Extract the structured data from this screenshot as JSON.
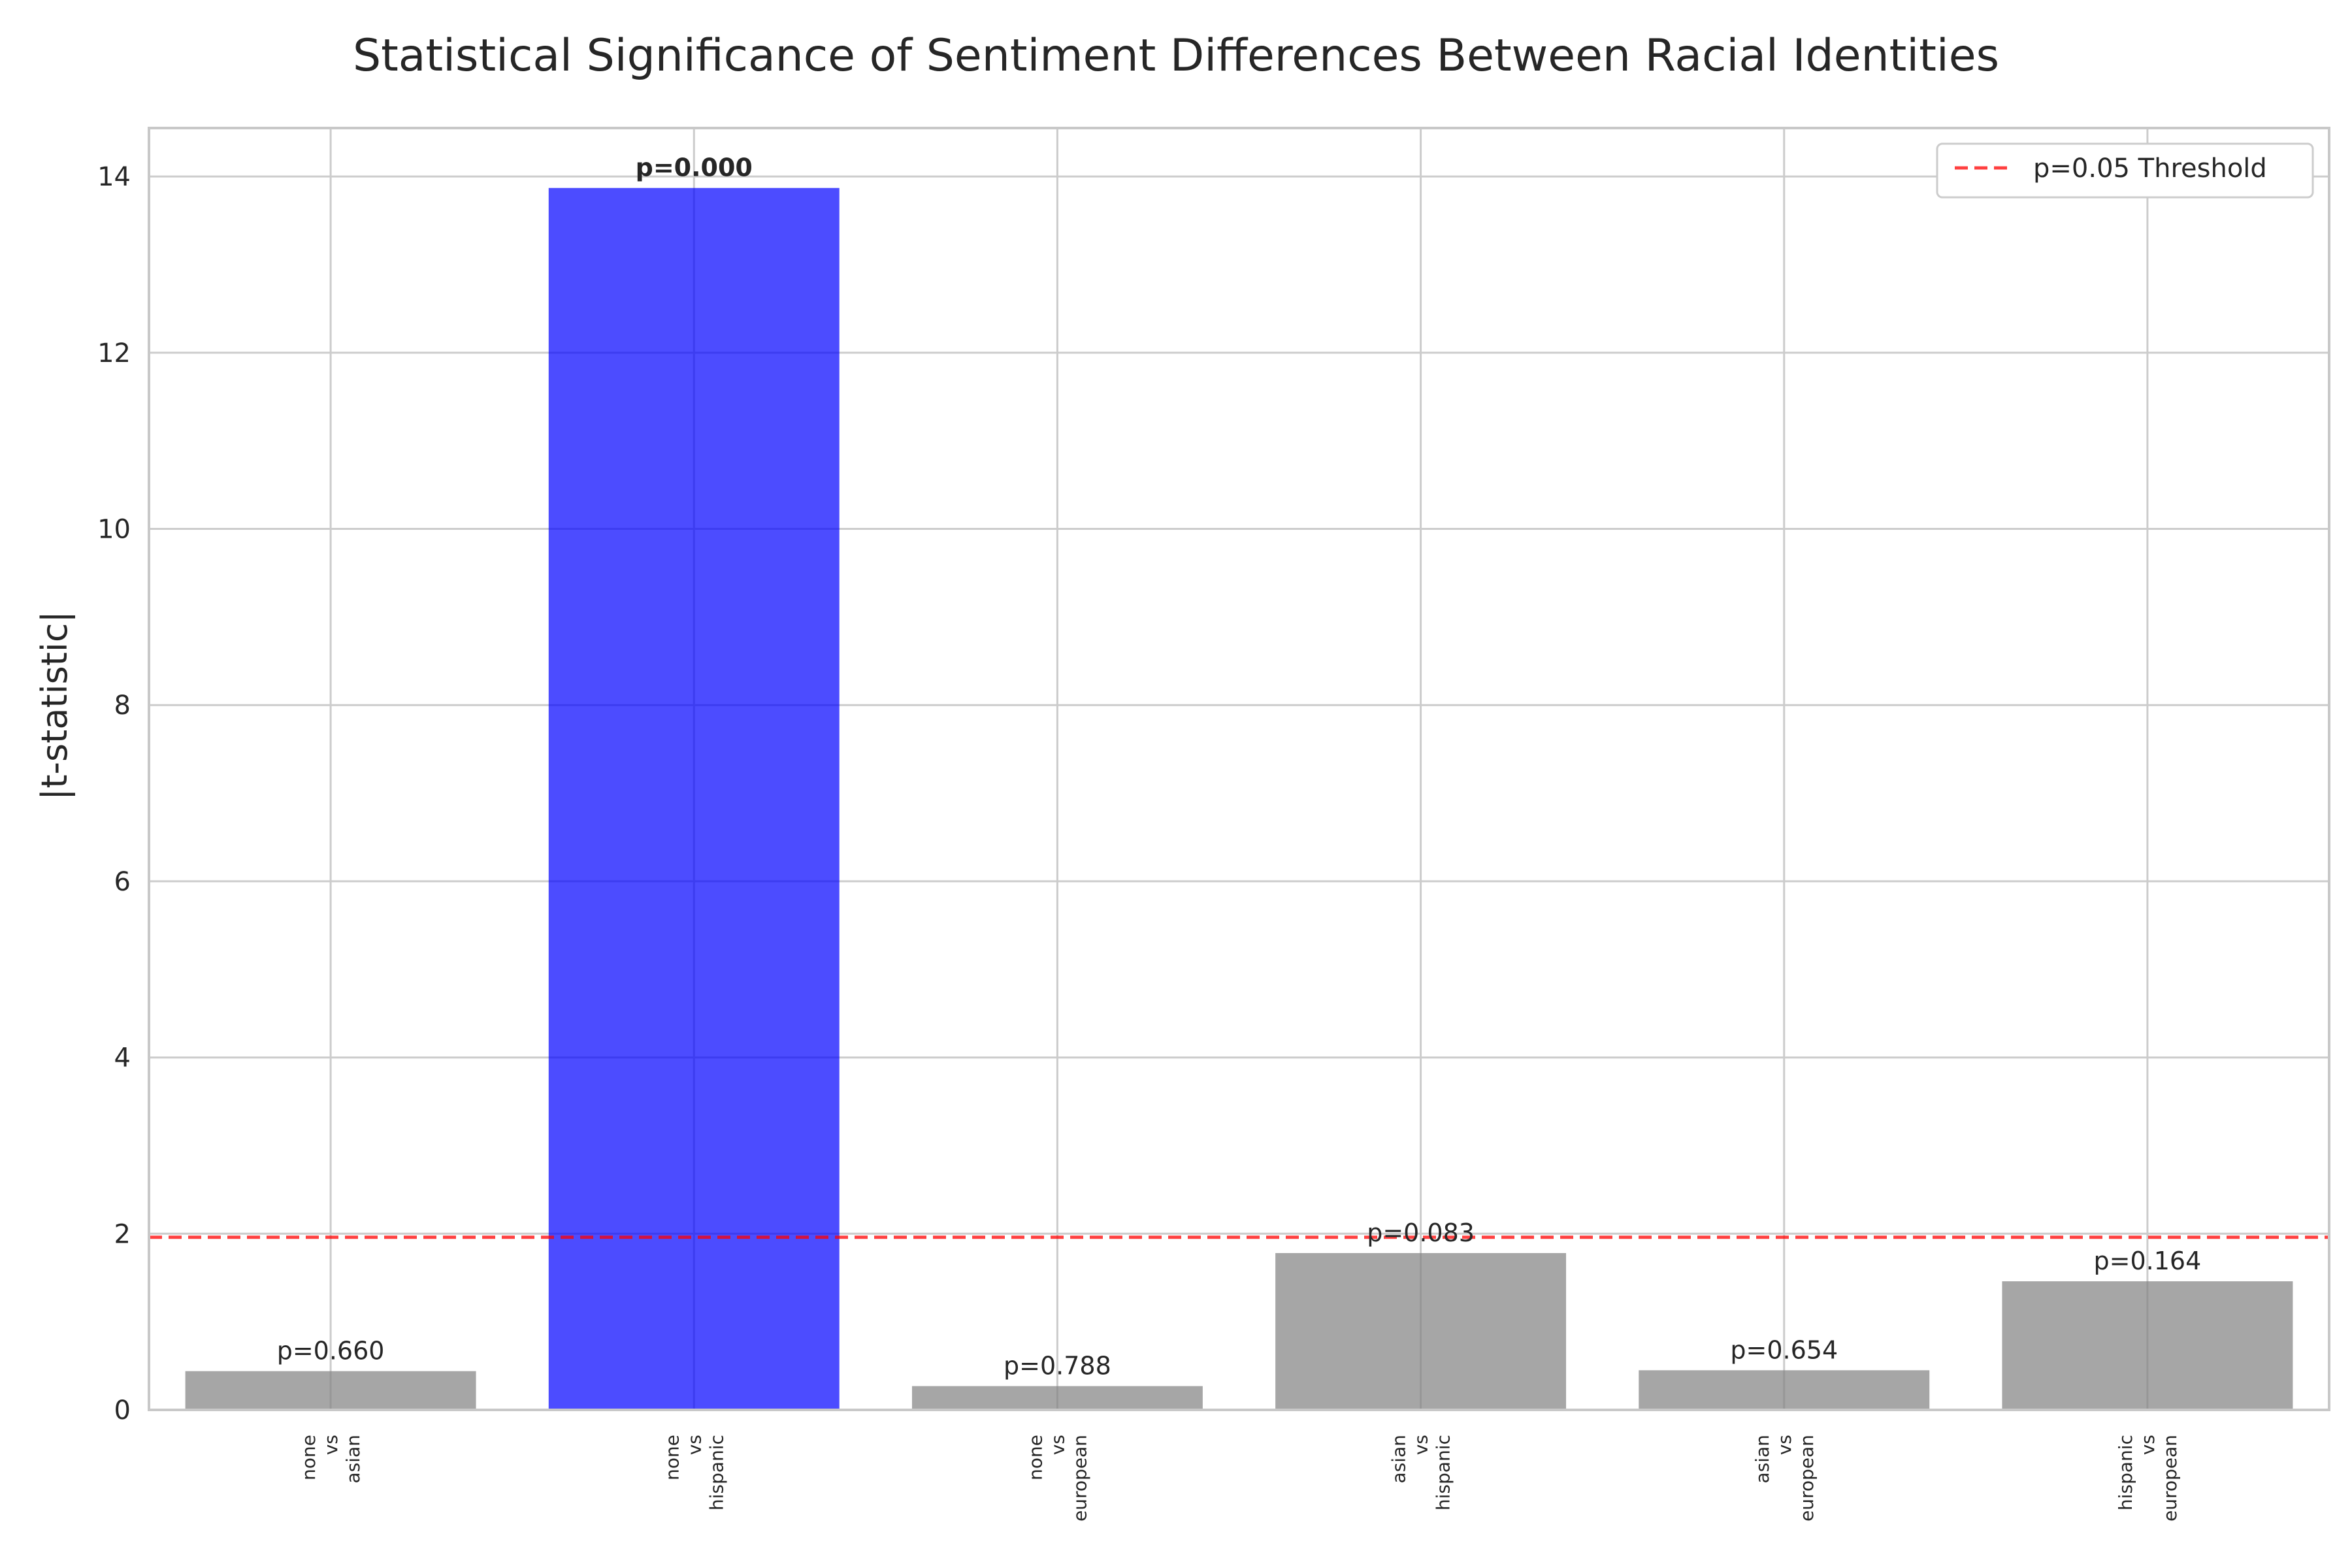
{
  "chart_data": {
    "type": "bar",
    "title": "Statistical Significance of Sentiment Differences Between Racial Identities",
    "xlabel": "",
    "ylabel": "|t-statistic|",
    "ylim": [
      0,
      14.55
    ],
    "yticks": [
      0,
      2,
      4,
      6,
      8,
      10,
      12,
      14
    ],
    "grid": true,
    "legend_placement": "top-right",
    "categories": [
      [
        "none",
        "vs",
        "asian"
      ],
      [
        "none",
        "vs",
        "hispanic"
      ],
      [
        "none",
        "vs",
        "european"
      ],
      [
        "asian",
        "vs",
        "hispanic"
      ],
      [
        "asian",
        "vs",
        "european"
      ],
      [
        "hispanic",
        "vs",
        "european"
      ]
    ],
    "values": [
      0.44,
      13.87,
      0.27,
      1.78,
      0.45,
      1.46
    ],
    "p_labels": [
      "p=0.660",
      "p=0.000",
      "p=0.788",
      "p=0.083",
      "p=0.654",
      "p=0.164"
    ],
    "significant": [
      false,
      true,
      false,
      false,
      false,
      false
    ],
    "threshold": {
      "value": 1.96,
      "label": "p=0.05 Threshold",
      "color": "#ff0000"
    },
    "colors": {
      "significant": "#0000ff",
      "not_significant": "#808080",
      "grid": "#cccccc",
      "axis": "#c8c8c8"
    }
  }
}
